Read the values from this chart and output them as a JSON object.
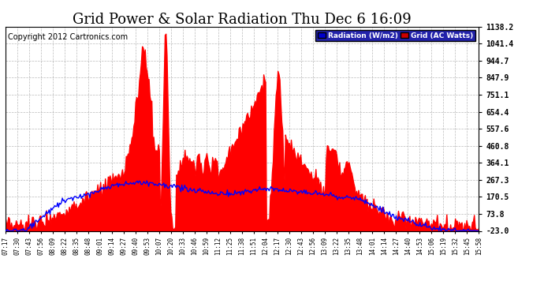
{
  "title": "Grid Power & Solar Radiation Thu Dec 6 16:09",
  "copyright": "Copyright 2012 Cartronics.com",
  "ylabel_right_values": [
    1138.2,
    1041.4,
    944.7,
    847.9,
    751.1,
    654.4,
    557.6,
    460.8,
    364.1,
    267.3,
    170.5,
    73.8,
    -23.0
  ],
  "ymin": -23.0,
  "ymax": 1138.2,
  "fill_color": "#ff0000",
  "line_color": "#0000ff",
  "bg_color": "#ffffff",
  "plot_bg_color": "#ffffff",
  "grid_color": "#aaaaaa",
  "title_fontsize": 13,
  "copyright_fontsize": 7,
  "tick_labels": [
    "07:17",
    "07:30",
    "07:43",
    "07:56",
    "08:09",
    "08:22",
    "08:35",
    "08:48",
    "09:01",
    "09:14",
    "09:27",
    "09:40",
    "09:53",
    "10:07",
    "10:20",
    "10:33",
    "10:46",
    "10:59",
    "11:12",
    "11:25",
    "11:38",
    "11:51",
    "12:04",
    "12:17",
    "12:30",
    "12:43",
    "12:56",
    "13:09",
    "13:22",
    "13:35",
    "13:48",
    "14:01",
    "14:14",
    "14:27",
    "14:40",
    "14:53",
    "15:06",
    "15:19",
    "15:32",
    "15:45",
    "15:58"
  ],
  "legend_rad_color": "#0000cc",
  "legend_grid_color": "#cc0000",
  "legend_frame_color": "#2222aa"
}
